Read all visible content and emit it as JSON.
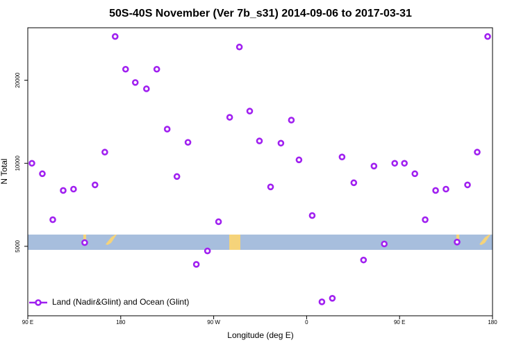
{
  "chart_data": {
    "type": "scatter",
    "title": "50S-40S November (Ver 7b_s31)   2014-09-06 to 2017-03-31",
    "x_label": "Longitude (deg E)",
    "y_label": "N Total",
    "xlim": [
      90,
      540
    ],
    "xticks": [
      {
        "value": 90,
        "label": "90 E"
      },
      180,
      {
        "value": 270,
        "label": "90 W"
      },
      {
        "value": 360,
        "label": "0"
      },
      {
        "value": 450,
        "label": "90 E"
      },
      {
        "value": 540,
        "label": "180"
      }
    ],
    "ylim": [
      2800,
      31000
    ],
    "yticks": [
      5000,
      10000,
      20000
    ],
    "log_y": true,
    "legend": "bottom-left",
    "series": [
      {
        "name": "Land (Nadir&Glint) and Ocean (Glint)",
        "color": "#a020f0",
        "x": [
          94.0,
          104.1,
          114.2,
          124.3,
          134.3,
          145.1,
          155.1,
          164.6,
          174.6,
          184.7,
          194.1,
          204.9,
          214.9,
          225.0,
          234.4,
          245.1,
          253.2,
          264.0,
          274.7,
          285.5,
          294.9,
          304.9,
          314.3,
          325.1,
          335.1,
          345.2,
          352.6,
          365.4,
          374.8,
          384.9,
          394.3,
          405.7,
          415.1,
          425.2,
          435.2,
          445.3,
          454.7,
          464.8,
          474.8,
          484.9,
          494.9,
          505.7,
          515.8,
          525.2,
          535.3
        ],
        "values": [
          10000,
          9165,
          6245,
          7970,
          8060,
          5157,
          8350,
          10975,
          28820,
          21930,
          19630,
          18620,
          21930,
          13300,
          8955,
          11910,
          4300,
          4810,
          6140,
          14680,
          26400,
          15460,
          12050,
          8210,
          11830,
          14340,
          10290,
          6465,
          3145,
          3240,
          10540,
          8500,
          4460,
          9770,
          5100,
          10000,
          10000,
          9165,
          6245,
          7970,
          8060,
          5180,
          8350,
          10975,
          28820
        ]
      }
    ]
  }
}
